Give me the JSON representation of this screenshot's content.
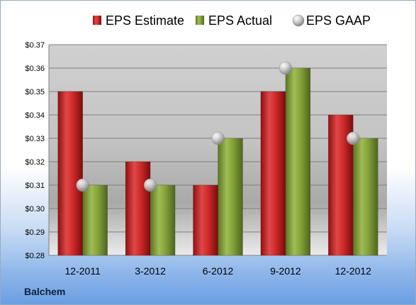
{
  "company": "Balchem",
  "chart_data": {
    "type": "bar",
    "categories": [
      "12-2011",
      "3-2012",
      "6-2012",
      "9-2012",
      "12-2012"
    ],
    "series": [
      {
        "name": "EPS Estimate",
        "type": "bar",
        "color": "#cc2b2b",
        "values": [
          0.35,
          0.32,
          0.31,
          0.35,
          0.34
        ]
      },
      {
        "name": "EPS Actual",
        "type": "bar",
        "color": "#86a33a",
        "values": [
          0.31,
          0.31,
          0.33,
          0.36,
          0.33
        ]
      },
      {
        "name": "EPS GAAP",
        "type": "scatter",
        "color": "#b0b0b0",
        "values": [
          0.31,
          0.31,
          0.33,
          0.36,
          0.33
        ]
      }
    ],
    "ylim": [
      0.28,
      0.37
    ],
    "yticks": [
      "$0.28",
      "$0.29",
      "$0.30",
      "$0.31",
      "$0.32",
      "$0.33",
      "$0.34",
      "$0.35",
      "$0.36",
      "$0.37"
    ],
    "xlabel": "",
    "ylabel": "",
    "grid": true,
    "legend": "top"
  }
}
